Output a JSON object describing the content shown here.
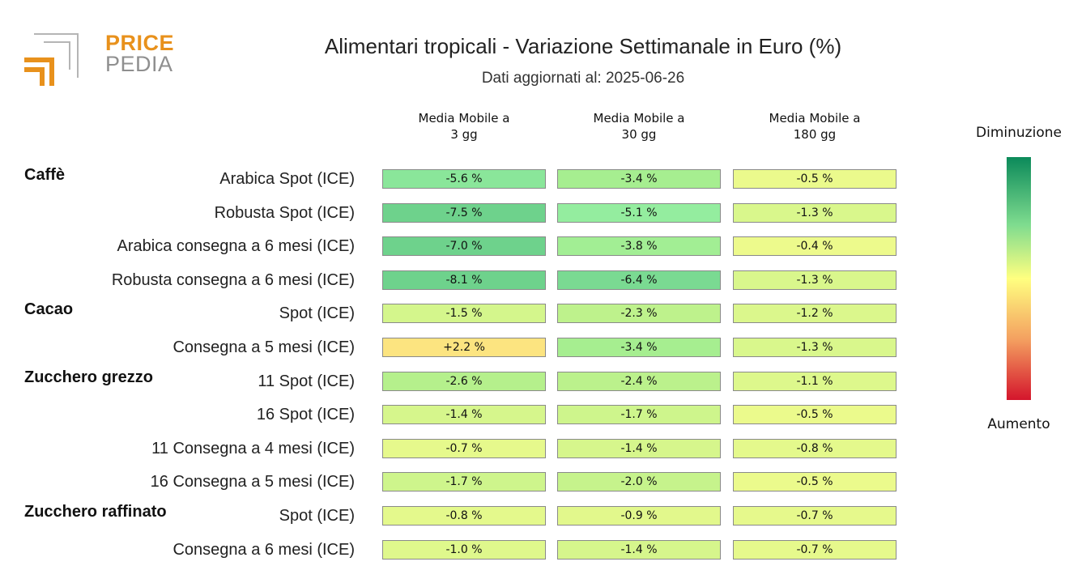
{
  "logo": {
    "word1": "PRICE",
    "word2": "PEDIA"
  },
  "title": "Alimentari tropicali - Variazione Settimanale in Euro (%)",
  "subtitle": "Dati aggiornati al: 2025-06-26",
  "legend": {
    "top": "Diminuzione",
    "bottom": "Aumento"
  },
  "colors": {
    "logo_orange": "#e8911c",
    "logo_grey": "#8f8f8f",
    "scale": [
      "#0b8a5a",
      "#7fdc8f",
      "#ffff80",
      "#f4a060",
      "#d4152c"
    ]
  },
  "chart_data": {
    "type": "heatmap",
    "title": "Alimentari tropicali - Variazione Settimanale in Euro (%)",
    "columns": [
      {
        "line1": "Media Mobile a",
        "line2": "3 gg"
      },
      {
        "line1": "Media Mobile a",
        "line2": "30 gg"
      },
      {
        "line1": "Media Mobile a",
        "line2": "180 gg"
      }
    ],
    "groups": [
      {
        "name": "Caffè",
        "rows": [
          {
            "label": "Arabica Spot (ICE)",
            "values": [
              "-5.6 %",
              "-3.4 %",
              "-0.5 %"
            ]
          },
          {
            "label": "Robusta Spot (ICE)",
            "values": [
              "-7.5 %",
              "-5.1 %",
              "-1.3 %"
            ]
          },
          {
            "label": "Arabica consegna a 6 mesi (ICE)",
            "values": [
              "-7.0 %",
              "-3.8 %",
              "-0.4 %"
            ]
          },
          {
            "label": "Robusta consegna a 6 mesi (ICE)",
            "values": [
              "-8.1 %",
              "-6.4 %",
              "-1.3 %"
            ]
          }
        ]
      },
      {
        "name": "Cacao",
        "rows": [
          {
            "label": "Spot (ICE)",
            "values": [
              "-1.5 %",
              "-2.3 %",
              "-1.2 %"
            ]
          },
          {
            "label": "Consegna a 5 mesi (ICE)",
            "values": [
              "+2.2 %",
              "-3.4 %",
              "-1.3 %"
            ]
          }
        ]
      },
      {
        "name": "Zucchero grezzo",
        "rows": [
          {
            "label": "11 Spot (ICE)",
            "values": [
              "-2.6 %",
              "-2.4 %",
              "-1.1 %"
            ]
          },
          {
            "label": "16 Spot (ICE)",
            "values": [
              "-1.4 %",
              "-1.7 %",
              "-0.5 %"
            ]
          },
          {
            "label": "11 Consegna a 4 mesi (ICE)",
            "values": [
              "-0.7 %",
              "-1.4 %",
              "-0.8 %"
            ]
          },
          {
            "label": "16 Consegna a 5 mesi (ICE)",
            "values": [
              "-1.7 %",
              "-2.0 %",
              "-0.5 %"
            ]
          }
        ]
      },
      {
        "name": "Zucchero raffinato",
        "rows": [
          {
            "label": "Spot (ICE)",
            "values": [
              "-0.8 %",
              "-0.9 %",
              "-0.7 %"
            ]
          },
          {
            "label": "Consegna a 6 mesi (ICE)",
            "values": [
              "-1.0 %",
              "-1.4 %",
              "-0.7 %"
            ]
          }
        ]
      }
    ]
  }
}
